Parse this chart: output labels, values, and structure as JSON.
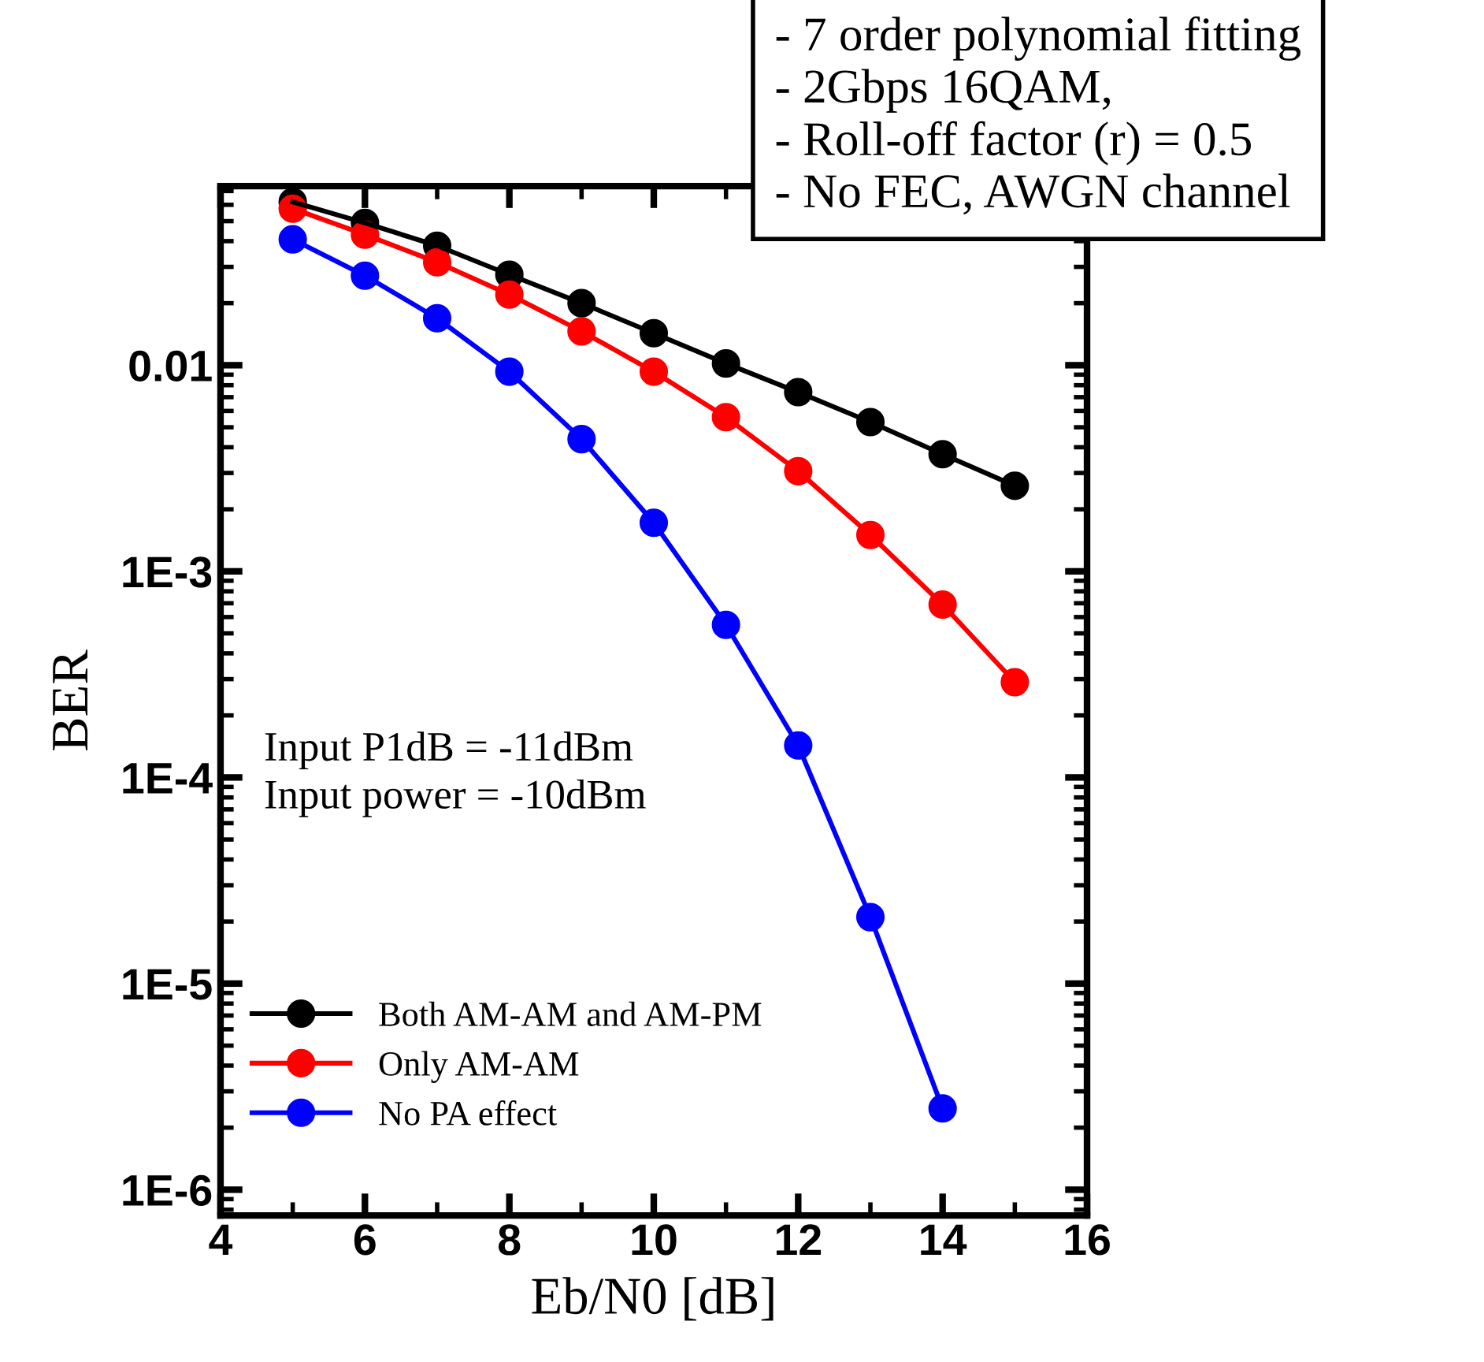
{
  "chart_data": {
    "type": "line",
    "xlabel": "Eb/N0 [dB]",
    "ylabel": "BER",
    "log": "y",
    "marker": "circle",
    "line_style": "solid",
    "legend": "bottom left",
    "grid": false,
    "xlim": [
      4,
      16
    ],
    "xticks": [
      4,
      6,
      8,
      10,
      12,
      14,
      16
    ],
    "ylim": [
      7.5e-07,
      0.074
    ],
    "yticks": [
      0.01,
      {
        "value": 0.001,
        "label": "1E-3"
      },
      {
        "value": 0.0001,
        "label": "1E-4"
      },
      {
        "value": 1e-05,
        "label": "1E-5"
      },
      {
        "value": 1e-06,
        "label": "1E-6"
      }
    ],
    "x": [
      5,
      6,
      7,
      8,
      9,
      10,
      11,
      12,
      13,
      14,
      15
    ],
    "series": [
      {
        "name": "Both AM-AM and AM-PM",
        "color": "#000000",
        "values": [
          0.062,
          0.049,
          0.038,
          0.0275,
          0.02,
          0.0143,
          0.0102,
          0.0074,
          0.0053,
          0.0037,
          0.0026
        ]
      },
      {
        "name": "Only AM-AM",
        "color": "#ff0000",
        "values": [
          0.0575,
          0.043,
          0.0316,
          0.022,
          0.0146,
          0.0093,
          0.0056,
          0.00306,
          0.0015,
          0.00069,
          0.00029
        ]
      },
      {
        "name": "No PA effect",
        "color": "#0000ff",
        "values": [
          0.0408,
          0.0272,
          0.0169,
          0.0093,
          0.00438,
          0.00172,
          0.00055,
          0.000143,
          2.1e-05,
          2.48e-06,
          null
        ]
      }
    ],
    "annotations": [
      "- 7 order polynomial fitting\n- 2Gbps 16QAM,\n- Roll-off factor (r) = 0.5\n- No FEC, AWGN channel",
      "Input P1dB = -11dBm\nInput power = -10dBm"
    ]
  }
}
